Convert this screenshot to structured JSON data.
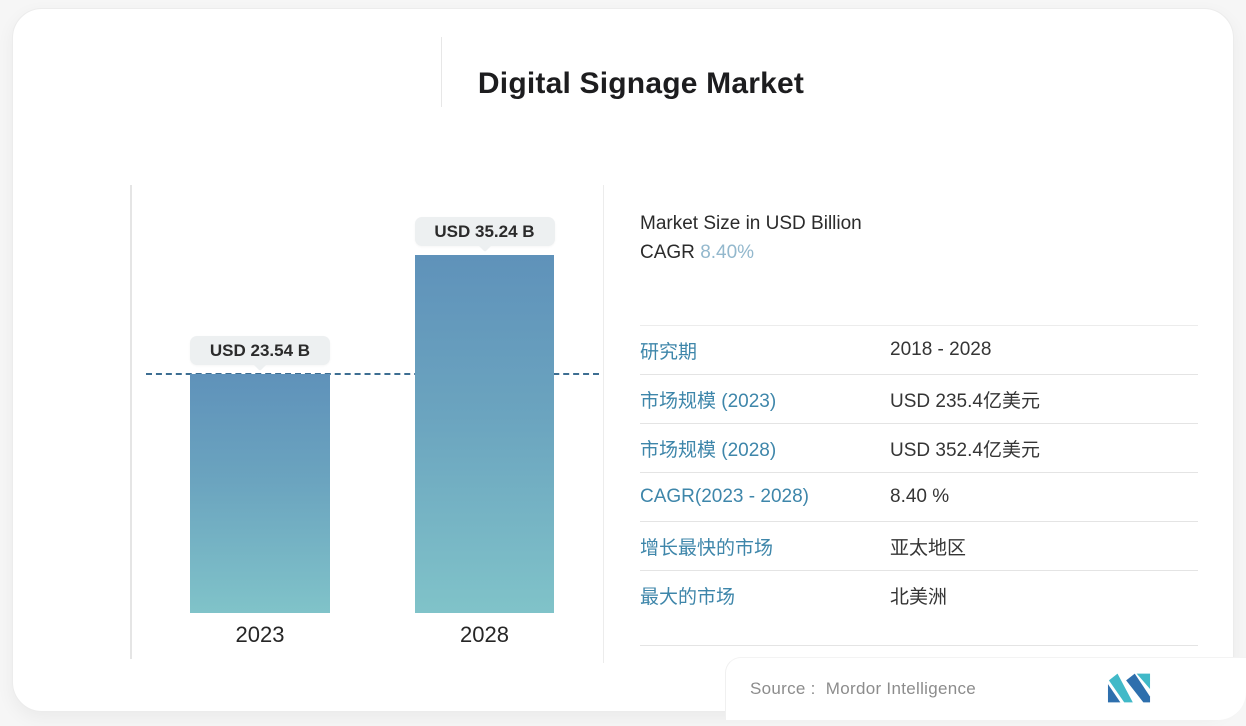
{
  "window": {
    "title": "Digital Signage Market"
  },
  "chart_data": {
    "type": "bar",
    "title": "Digital Signage Market",
    "categories": [
      "2023",
      "2028"
    ],
    "values": [
      23.54,
      35.24
    ],
    "value_labels": [
      "USD 23.54 B",
      "USD 35.24 B"
    ],
    "unit": "USD Billion",
    "ylim": [
      0,
      40
    ],
    "grid": false,
    "legend": false,
    "reference_line": {
      "style": "dashed",
      "value": 23.54
    },
    "bar_gradient_top": "#5f92ba",
    "bar_gradient_bottom": "#80c3c9"
  },
  "info_panel": {
    "heading_line1": "Market Size in USD Billion",
    "cagr_label": "CAGR",
    "cagr_value": "8.40%",
    "table_rows": [
      {
        "label": "研究期",
        "value": "2018 - 2028"
      },
      {
        "label": "市场规模 (2023)",
        "value": "USD 235.4亿美元"
      },
      {
        "label": "市场规模 (2028)",
        "value": "USD 352.4亿美元"
      },
      {
        "label": "CAGR(2023 - 2028)",
        "value": "8.40 %"
      },
      {
        "label": "增长最快的市场",
        "value": "亚太地区"
      },
      {
        "label": "最大的市场",
        "value": "北美洲"
      }
    ]
  },
  "footer": {
    "source_label": "Source :",
    "source_name": "Mordor Intelligence",
    "logo_icon": "mordor-intelligence-logo"
  },
  "colors": {
    "table_label_blue": "#3e86aa",
    "cagr_value_blue": "#93b8cd",
    "dashed_line": "#3d6e92",
    "logo_teal": "#41b9c8",
    "logo_blue": "#2e6fad"
  }
}
